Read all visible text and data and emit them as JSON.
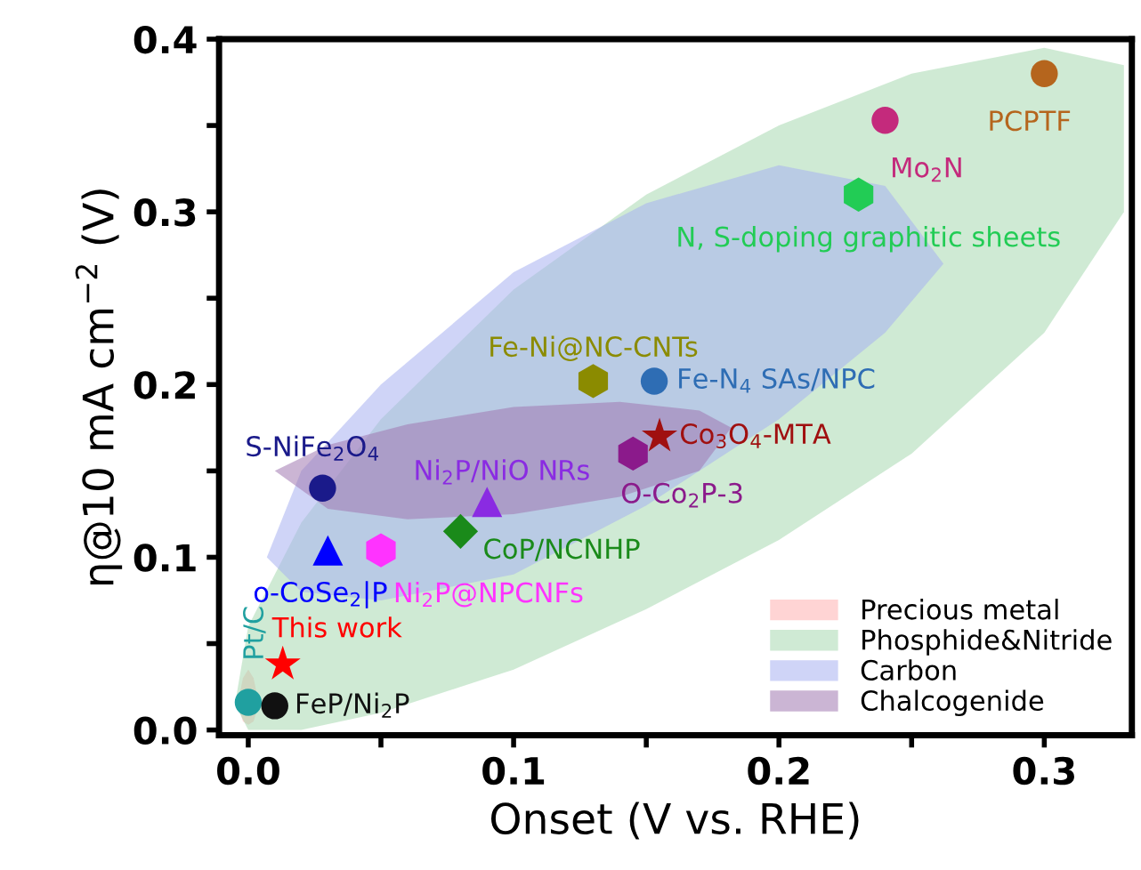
{
  "chart_data": {
    "type": "scatter",
    "xlabel": "Onset (V vs. RHE)",
    "ylabel": "η@10 mA cm$^{−2}$ (V)",
    "xlim": [
      -0.011,
      0.333
    ],
    "ylim": [
      -0.003,
      0.4
    ],
    "xticks": [
      {
        "value": 0,
        "label": "0.0"
      },
      {
        "value": 0.05,
        "label": null
      },
      {
        "value": 0.1,
        "label": "0.1"
      },
      {
        "value": 0.15,
        "label": null
      },
      {
        "value": 0.2,
        "label": "0.2"
      },
      {
        "value": 0.25,
        "label": null
      },
      {
        "value": 0.3,
        "label": "0.3"
      }
    ],
    "yticks": [
      {
        "value": 0,
        "label": "0.0"
      },
      {
        "value": 0.05,
        "label": null
      },
      {
        "value": 0.1,
        "label": "0.1"
      },
      {
        "value": 0.15,
        "label": null
      },
      {
        "value": 0.2,
        "label": "0.2"
      },
      {
        "value": 0.25,
        "label": null
      },
      {
        "value": 0.3,
        "label": "0.3"
      },
      {
        "value": 0.35,
        "label": null
      },
      {
        "value": 0.4,
        "label": "0.4"
      }
    ],
    "grid": false,
    "legend": "bottom right",
    "series": [
      {
        "type": "area",
        "name": "Precious metal",
        "color": "#ffb0b0",
        "x": [
          -0.004,
          -0.002,
          0.0,
          0.002,
          0.004,
          0.002,
          0.0,
          -0.002
        ],
        "values": [
          0.015,
          0.03,
          0.035,
          0.03,
          0.015,
          0.005,
          0.003,
          0.005
        ]
      },
      {
        "type": "area",
        "name": "Phosphide&Nitride",
        "color": "#a8d8b0",
        "x": [
          -0.005,
          0.0,
          0.02,
          0.05,
          0.1,
          0.15,
          0.2,
          0.25,
          0.3,
          0.33,
          0.33,
          0.3,
          0.25,
          0.2,
          0.15,
          0.1,
          0.05,
          0.02,
          0.0
        ],
        "values": [
          0.015,
          0.06,
          0.12,
          0.18,
          0.255,
          0.31,
          0.35,
          0.38,
          0.395,
          0.385,
          0.3,
          0.23,
          0.16,
          0.11,
          0.07,
          0.035,
          0.01,
          0.0,
          0.0
        ]
      },
      {
        "type": "area",
        "name": "Carbon",
        "color": "#a8b0f0",
        "x": [
          0.007,
          0.02,
          0.05,
          0.1,
          0.15,
          0.2,
          0.24,
          0.262,
          0.24,
          0.2,
          0.15,
          0.1,
          0.05,
          0.02
        ],
        "values": [
          0.1,
          0.15,
          0.2,
          0.265,
          0.305,
          0.327,
          0.315,
          0.27,
          0.23,
          0.18,
          0.13,
          0.09,
          0.075,
          0.08
        ]
      },
      {
        "type": "area",
        "name": "Chalcogenide",
        "color": "#a078b0",
        "x": [
          0.01,
          0.03,
          0.06,
          0.1,
          0.14,
          0.17,
          0.182,
          0.17,
          0.14,
          0.1,
          0.06,
          0.03
        ],
        "values": [
          0.15,
          0.165,
          0.177,
          0.187,
          0.19,
          0.185,
          0.175,
          0.15,
          0.135,
          0.125,
          0.122,
          0.128
        ]
      },
      {
        "name": "PCPTF",
        "color": "#b5651d",
        "marker": "circle",
        "x": [
          0.3
        ],
        "values": [
          0.38
        ]
      },
      {
        "name": "Mo$_{2}$N",
        "color": "#c42a7c",
        "marker": "circle",
        "x": [
          0.24
        ],
        "values": [
          0.353
        ]
      },
      {
        "name": "N, S-doping graphitic sheets",
        "color": "#22cc55",
        "x": [
          0.23
        ],
        "values": [
          0.31
        ]
      },
      {
        "name": "Fe-Ni@NC-CNTs",
        "color": "#8b8b00",
        "x": [
          0.13
        ],
        "values": [
          0.202
        ]
      },
      {
        "name": "Fe-N$_{4}$ SAs/NPC",
        "color": "#2e6db4",
        "marker": "circle",
        "x": [
          0.153
        ],
        "values": [
          0.202
        ]
      },
      {
        "name": "Co$_{3}$O$_{4}$-MTA",
        "color": "#a01010",
        "marker": "star",
        "x": [
          0.155
        ],
        "values": [
          0.17
        ]
      },
      {
        "name": "O-Co$_{2}$P-3",
        "color": "#8b1a8b",
        "x": [
          0.145
        ],
        "values": [
          0.16
        ]
      },
      {
        "name": "Ni$_{2}$P/NiO NRs",
        "color": "#8a2be2",
        "marker": "triangle",
        "x": [
          0.09
        ],
        "values": [
          0.132
        ]
      },
      {
        "name": "CoP/NCNHP",
        "color": "#1a8a1a",
        "marker": "diamond",
        "x": [
          0.08
        ],
        "values": [
          0.115
        ]
      },
      {
        "name": "S-NiFe$_{2}$O$_{4}$",
        "color": "#1a1a8a",
        "marker": "circle",
        "x": [
          0.028
        ],
        "values": [
          0.14
        ]
      },
      {
        "name": "o-CoSe$_{2}$|P",
        "color": "#0000ff",
        "marker": "triangle",
        "x": [
          0.03
        ],
        "values": [
          0.104
        ]
      },
      {
        "name": "Ni$_{2}$P@NPCNFs",
        "color": "#ff33ff",
        "x": [
          0.05
        ],
        "values": [
          0.104
        ]
      },
      {
        "name": "This work",
        "color": "#ff0000",
        "marker": "star",
        "x": [
          0.013
        ],
        "values": [
          0.038
        ]
      },
      {
        "name": "Pt/C",
        "color": "#20a0a0",
        "marker": "circle",
        "x": [
          0.0
        ],
        "values": [
          0.016
        ]
      },
      {
        "name": "FeP/Ni$_{2}$P",
        "color": "#111111",
        "marker": "circle",
        "x": [
          0.01
        ],
        "values": [
          0.014
        ]
      }
    ]
  }
}
